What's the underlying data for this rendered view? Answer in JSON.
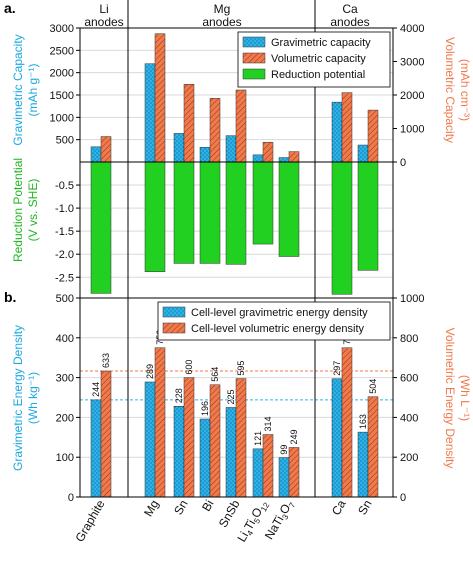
{
  "colors": {
    "gravimetric": "#2ab3ea",
    "volumetric": "#f07a4c",
    "reduction": "#22d022",
    "left_axis_a": "#1aa8e0",
    "right_axis": "#f07a4c",
    "reduction_axis": "#22b822"
  },
  "panel_a": {
    "label": "a.",
    "groups": [
      {
        "line1": "Li",
        "line2": "anodes"
      },
      {
        "line1": "Mg",
        "line2": "anodes"
      },
      {
        "line1": "Ca",
        "line2": "anodes"
      }
    ],
    "y_left_label_1": "Gravimetric Capacity",
    "y_left_label_2": "(mAh g⁻¹)",
    "y_right_label_1": "Volumetric Capacity",
    "y_right_label_2": "(mAh cm⁻³)",
    "y_reduction_label_1": "Reduction Potential",
    "y_reduction_label_2": "(V vs. SHE)",
    "legend": [
      "Gravimetric capacity",
      "Volumetric capacity",
      "Reduction potential"
    ]
  },
  "panel_b": {
    "label": "b.",
    "y_left_label_1": "Gravimetric Energy Density",
    "y_left_label_2": "(Wh kg⁻¹)",
    "y_right_label_1": "Volumetric Energy Density",
    "y_right_label_2": "(Wh L⁻¹)",
    "legend": [
      "Cell-level gravimetric energy density",
      "Cell-level volumetric energy density"
    ]
  },
  "chart_data": [
    {
      "type": "bar",
      "panel": "a",
      "categories": [
        "Graphite",
        "Mg",
        "Sn",
        "Bi",
        "SnSb",
        "Li4Ti5O12",
        "NaTi3O7",
        "Ca",
        "Sn"
      ],
      "series": [
        {
          "name": "Gravimetric capacity",
          "axis": "left",
          "values": [
            340,
            2200,
            640,
            330,
            590,
            160,
            100,
            1340,
            380
          ]
        },
        {
          "name": "Volumetric capacity",
          "axis": "right",
          "values": [
            760,
            3830,
            2320,
            1900,
            2150,
            590,
            310,
            2070,
            1550
          ]
        },
        {
          "name": "Reduction potential",
          "axis": "reduction",
          "values": [
            -2.85,
            -2.38,
            -2.2,
            -2.2,
            -2.22,
            -1.78,
            -2.05,
            -2.87,
            -2.35
          ]
        }
      ],
      "y_left_ticks": [
        500,
        1000,
        1500,
        2000,
        2500,
        3000
      ],
      "ylim_left": [
        0,
        3000
      ],
      "y_right_ticks": [
        0,
        1000,
        2000,
        3000,
        4000
      ],
      "ylim_right": [
        0,
        4000
      ],
      "y_reduction_ticks": [
        "-0.5",
        "-1.0",
        "-1.5",
        "-2.0",
        "-2.5"
      ],
      "ylim_reduction": [
        -2.95,
        0
      ],
      "grid": true,
      "legend_position": "top-right"
    },
    {
      "type": "bar",
      "panel": "b",
      "categories": [
        "Graphite",
        "Mg",
        "Sn",
        "Bi",
        "SnSb",
        "Li4Ti5O12",
        "NaTi3O7",
        "Ca",
        "Sn"
      ],
      "category_display": [
        [
          {
            "t": "Graphite"
          }
        ],
        [
          {
            "t": "Mg"
          }
        ],
        [
          {
            "t": "Sn"
          }
        ],
        [
          {
            "t": "Bi"
          }
        ],
        [
          {
            "t": "SnSb"
          }
        ],
        [
          {
            "t": "Li"
          },
          {
            "t": "4",
            "sub": true
          },
          {
            "t": "Ti"
          },
          {
            "t": "5",
            "sub": true
          },
          {
            "t": "O"
          },
          {
            "t": "12",
            "sub": true
          }
        ],
        [
          {
            "t": "NaTi"
          },
          {
            "t": "3",
            "sub": true
          },
          {
            "t": "O"
          },
          {
            "t": "7",
            "sub": true
          }
        ],
        [
          {
            "t": "Ca"
          }
        ],
        [
          {
            "t": "Sn"
          }
        ]
      ],
      "series": [
        {
          "name": "Cell-level gravimetric energy density",
          "axis": "left",
          "values": [
            244,
            289,
            228,
            196,
            225,
            121,
            99,
            297,
            163
          ]
        },
        {
          "name": "Cell-level volumetric energy density",
          "axis": "right",
          "values": [
            633,
            750,
            600,
            564,
            595,
            314,
            249,
            750,
            504
          ]
        }
      ],
      "reference_lines": {
        "gravimetric": 244,
        "volumetric": 633
      },
      "y_left_ticks": [
        0,
        100,
        200,
        300,
        400,
        500
      ],
      "ylim_left": [
        0,
        500
      ],
      "y_right_ticks": [
        0,
        200,
        400,
        600,
        800,
        1000
      ],
      "ylim_right": [
        0,
        1000
      ],
      "grid": true,
      "legend_position": "top-right"
    }
  ]
}
